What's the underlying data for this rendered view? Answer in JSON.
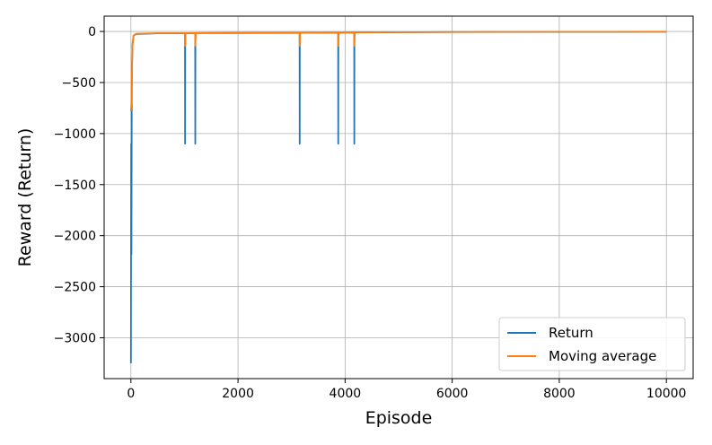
{
  "chart_data": {
    "type": "line",
    "title": "",
    "xlabel": "Episode",
    "ylabel": "Reward (Return)",
    "xlim": [
      -500,
      10500
    ],
    "ylim": [
      -3400,
      150
    ],
    "x_ticks": [
      0,
      2000,
      4000,
      6000,
      8000,
      10000
    ],
    "x_tick_labels": [
      "0",
      "2000",
      "4000",
      "6000",
      "8000",
      "10000"
    ],
    "y_ticks": [
      0,
      -500,
      -1000,
      -1500,
      -2000,
      -2500,
      -3000
    ],
    "y_tick_labels": [
      "0",
      "−500",
      "−1000",
      "−1500",
      "−2000",
      "−2500",
      "−3000"
    ],
    "grid": true,
    "legend_position": "lower-right",
    "legend": [
      "Return",
      "Moving average"
    ],
    "series": [
      {
        "name": "Return",
        "color": "#1f77b4",
        "points": [
          [
            0,
            -3250
          ],
          [
            5,
            -1100
          ],
          [
            10,
            -2180
          ],
          [
            15,
            -800
          ],
          [
            20,
            -350
          ],
          [
            30,
            -120
          ],
          [
            50,
            -40
          ],
          [
            100,
            -25
          ],
          [
            500,
            -18
          ],
          [
            1010,
            -18
          ],
          [
            1012,
            -1100
          ],
          [
            1014,
            -18
          ],
          [
            1200,
            -16
          ],
          [
            1202,
            -1100
          ],
          [
            1204,
            -16
          ],
          [
            3150,
            -14
          ],
          [
            3152,
            -1100
          ],
          [
            3154,
            -14
          ],
          [
            3870,
            -12
          ],
          [
            3872,
            -1100
          ],
          [
            3874,
            -12
          ],
          [
            4170,
            -10
          ],
          [
            4172,
            -1100
          ],
          [
            4174,
            -10
          ],
          [
            5000,
            -8
          ],
          [
            6000,
            -6
          ],
          [
            7000,
            -5
          ],
          [
            8000,
            -4
          ],
          [
            9000,
            -4
          ],
          [
            10000,
            -3
          ]
        ]
      },
      {
        "name": "Moving average",
        "color": "#ff7f0e",
        "points": [
          [
            0,
            -780
          ],
          [
            10,
            -700
          ],
          [
            20,
            -380
          ],
          [
            30,
            -140
          ],
          [
            50,
            -40
          ],
          [
            100,
            -22
          ],
          [
            500,
            -17
          ],
          [
            1010,
            -17
          ],
          [
            1012,
            -140
          ],
          [
            1022,
            -17
          ],
          [
            1200,
            -15
          ],
          [
            1202,
            -140
          ],
          [
            1212,
            -15
          ],
          [
            3150,
            -13
          ],
          [
            3152,
            -140
          ],
          [
            3162,
            -13
          ],
          [
            3870,
            -11
          ],
          [
            3872,
            -140
          ],
          [
            3882,
            -11
          ],
          [
            4170,
            -9
          ],
          [
            4172,
            -140
          ],
          [
            4182,
            -9
          ],
          [
            5000,
            -7
          ],
          [
            6000,
            -5
          ],
          [
            7000,
            -4
          ],
          [
            8000,
            -3
          ],
          [
            9000,
            -3
          ],
          [
            10000,
            -2
          ]
        ]
      }
    ]
  }
}
